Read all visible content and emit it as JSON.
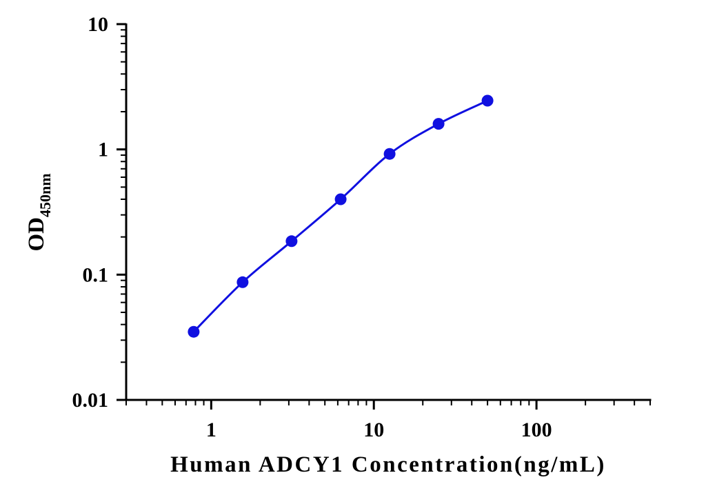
{
  "chart_data": {
    "type": "line",
    "title": "",
    "xlabel": "Human ADCY1 Concentration(ng/mL)",
    "ylabel_main": "OD",
    "ylabel_sub": "450nm",
    "x_scale": "log",
    "y_scale": "log",
    "xlim": [
      0.3,
      500
    ],
    "ylim": [
      0.01,
      10
    ],
    "x_ticks": [
      {
        "value": 1,
        "label": "1"
      },
      {
        "value": 10,
        "label": "10"
      },
      {
        "value": 100,
        "label": "100"
      }
    ],
    "y_ticks": [
      {
        "value": 0.01,
        "label": "0.01"
      },
      {
        "value": 0.1,
        "label": "0.1"
      },
      {
        "value": 1,
        "label": "1"
      },
      {
        "value": 10,
        "label": "10"
      }
    ],
    "grid": false,
    "legend": "none",
    "color": "#1010e0",
    "series": [
      {
        "x": [
          0.78,
          1.56,
          3.12,
          6.25,
          12.5,
          25,
          50
        ],
        "y": [
          0.035,
          0.087,
          0.185,
          0.4,
          0.92,
          1.6,
          2.45
        ]
      }
    ]
  }
}
